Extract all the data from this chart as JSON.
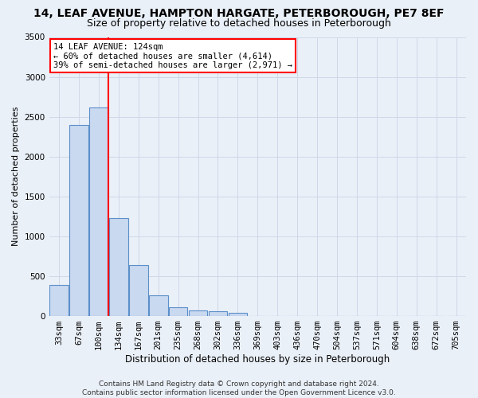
{
  "title1": "14, LEAF AVENUE, HAMPTON HARGATE, PETERBOROUGH, PE7 8EF",
  "title2": "Size of property relative to detached houses in Peterborough",
  "xlabel": "Distribution of detached houses by size in Peterborough",
  "ylabel": "Number of detached properties",
  "categories": [
    "33sqm",
    "67sqm",
    "100sqm",
    "134sqm",
    "167sqm",
    "201sqm",
    "235sqm",
    "268sqm",
    "302sqm",
    "336sqm",
    "369sqm",
    "403sqm",
    "436sqm",
    "470sqm",
    "504sqm",
    "537sqm",
    "571sqm",
    "604sqm",
    "638sqm",
    "672sqm",
    "705sqm"
  ],
  "values": [
    390,
    2400,
    2620,
    1230,
    640,
    260,
    110,
    65,
    55,
    40,
    0,
    0,
    0,
    0,
    0,
    0,
    0,
    0,
    0,
    0,
    0
  ],
  "bar_color": "#c9d9f0",
  "bar_edge_color": "#5b8fc9",
  "annotation_text": "14 LEAF AVENUE: 124sqm\n← 60% of detached houses are smaller (4,614)\n39% of semi-detached houses are larger (2,971) →",
  "annotation_box_color": "white",
  "annotation_box_edge": "red",
  "red_line_color": "red",
  "ylim": [
    0,
    3500
  ],
  "yticks": [
    0,
    500,
    1000,
    1500,
    2000,
    2500,
    3000,
    3500
  ],
  "grid_color": "#d0d8e8",
  "bg_color": "#eaf0f8",
  "footer": "Contains HM Land Registry data © Crown copyright and database right 2024.\nContains public sector information licensed under the Open Government Licence v3.0.",
  "title1_fontsize": 10,
  "title2_fontsize": 9,
  "xlabel_fontsize": 8.5,
  "ylabel_fontsize": 8,
  "tick_fontsize": 7.5,
  "footer_fontsize": 6.5
}
